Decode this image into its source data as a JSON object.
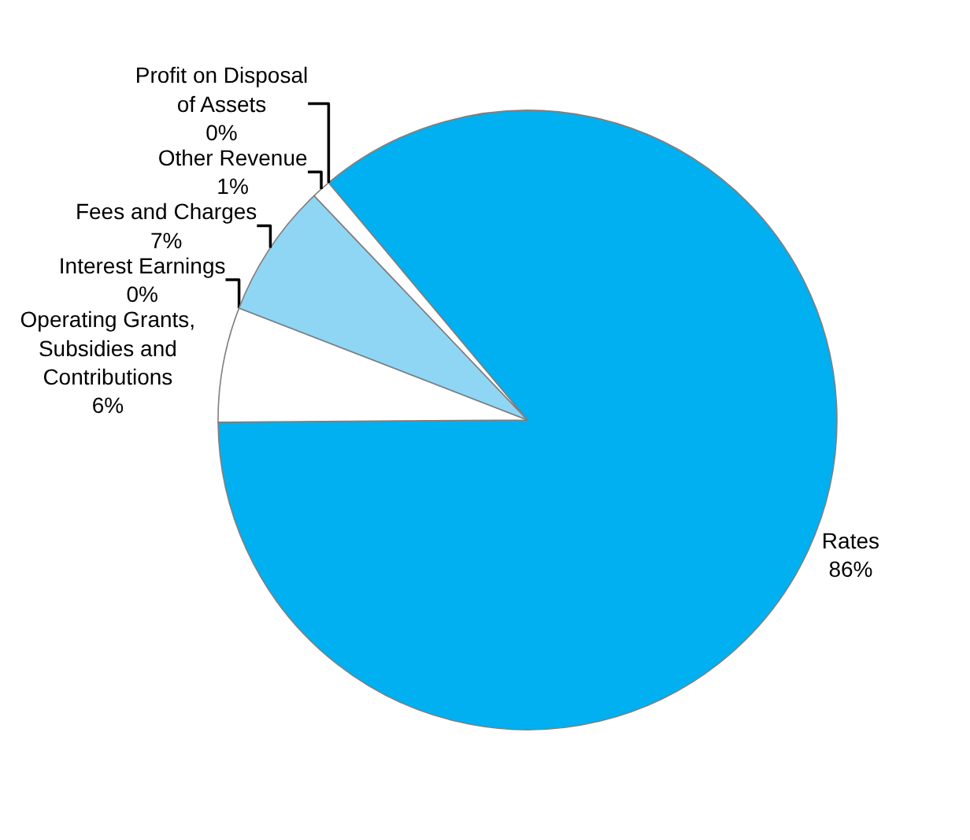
{
  "chart_data": {
    "type": "pie",
    "categories": [
      "Rates",
      "Operating Grants, Subsidies and Contributions",
      "Interest Earnings",
      "Fees and Charges",
      "Other Revenue",
      "Profit on Disposal of Assets"
    ],
    "values": [
      86,
      6,
      0,
      7,
      1,
      0
    ],
    "value_labels": [
      "86%",
      "6%",
      "0%",
      "7%",
      "1%",
      "0%"
    ],
    "colors": [
      "#00b0f0",
      "#ffffff",
      "#ffffff",
      "#8fd6f5",
      "#ffffff",
      "#ffffff"
    ],
    "legend": false
  }
}
